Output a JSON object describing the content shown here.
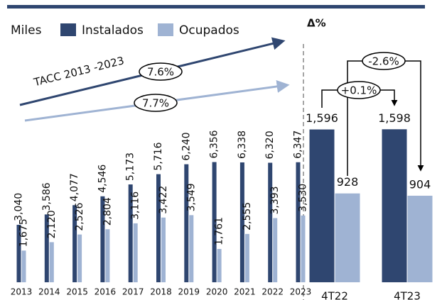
{
  "chart_data": [
    {
      "type": "bar",
      "legend_title": "Miles",
      "categories": [
        "2013",
        "2014",
        "2015",
        "2016",
        "2017",
        "2018",
        "2019",
        "2020",
        "2021",
        "2022",
        "2023"
      ],
      "series": [
        {
          "name": "Instalados",
          "color": "#2f4670",
          "values": [
            3040,
            3586,
            4077,
            4546,
            5173,
            5716,
            6240,
            6356,
            6338,
            6320,
            6347
          ],
          "value_labels": [
            "3,040",
            "3,586",
            "4,077",
            "4,546",
            "5,173",
            "5,716",
            "6,240",
            "6,356",
            "6,338",
            "6,320",
            "6,347"
          ]
        },
        {
          "name": "Ocupados",
          "color": "#9fb3d3",
          "values": [
            1675,
            2120,
            2526,
            2804,
            3116,
            3422,
            3549,
            1761,
            2555,
            3393,
            3530
          ],
          "value_labels": [
            "1,675",
            "2,120",
            "2,526",
            "2,804",
            "3,116",
            "3,422",
            "3,549",
            "1,761",
            "2,555",
            "3,393",
            "3,530"
          ]
        }
      ],
      "ylim": [
        0,
        6900
      ],
      "annotations": {
        "trend_label": "TACC 2013 -2023",
        "instalados_growth": "7.6%",
        "ocupados_growth": "7.7%"
      }
    },
    {
      "type": "bar",
      "title": "Δ%",
      "categories": [
        "4T22",
        "4T23"
      ],
      "series": [
        {
          "color": "#2f4670",
          "values": [
            1596,
            1598
          ],
          "value_labels": [
            "1,596",
            "1,598"
          ]
        },
        {
          "color": "#9fb3d3",
          "values": [
            928,
            904
          ],
          "value_labels": [
            "928",
            "904"
          ]
        }
      ],
      "ylim": [
        0,
        1800
      ],
      "annotations": {
        "instalados_change": "+0.1%",
        "ocupados_change": "-2.6%"
      }
    }
  ]
}
